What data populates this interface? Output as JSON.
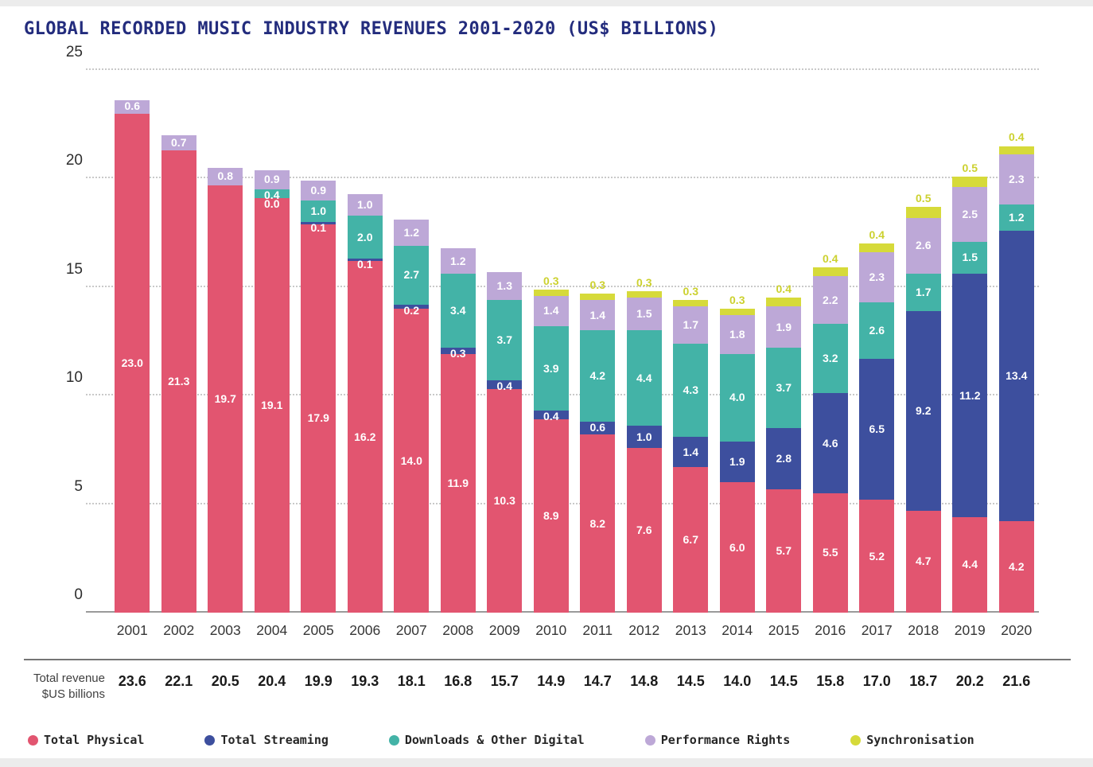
{
  "title": "GLOBAL RECORDED MUSIC INDUSTRY REVENUES 2001-2020 (US$ BILLIONS)",
  "colors": {
    "physical": "#e25570",
    "streaming": "#3d4f9e",
    "downloads": "#43b3a7",
    "performance": "#bda8d7",
    "sync": "#d6da3a",
    "sync_label_text": "#ccd12f",
    "title_text": "#232c7d",
    "axis_text": "#2d2d2d",
    "gridline": "#c9c9c9"
  },
  "chart_data": {
    "type": "bar",
    "stacked": true,
    "title": "GLOBAL RECORDED MUSIC INDUSTRY REVENUES 2001-2020 (US$ BILLIONS)",
    "ylabel": "US$ billions",
    "xlabel": "",
    "ylim": [
      0,
      25
    ],
    "yticks": [
      0,
      5,
      10,
      15,
      20,
      25
    ],
    "grid": "horizontal-dotted",
    "legend_position": "bottom",
    "categories": [
      "2001",
      "2002",
      "2003",
      "2004",
      "2005",
      "2006",
      "2007",
      "2008",
      "2009",
      "2010",
      "2011",
      "2012",
      "2013",
      "2014",
      "2015",
      "2016",
      "2017",
      "2018",
      "2019",
      "2020"
    ],
    "series": [
      {
        "name": "Total Physical",
        "key": "physical",
        "values": [
          23.0,
          21.3,
          19.7,
          19.1,
          17.9,
          16.2,
          14.0,
          11.9,
          10.3,
          8.9,
          8.2,
          7.6,
          6.7,
          6.0,
          5.7,
          5.5,
          5.2,
          4.7,
          4.4,
          4.2
        ]
      },
      {
        "name": "Total Streaming",
        "key": "streaming",
        "values": [
          null,
          null,
          null,
          0.0,
          0.1,
          0.1,
          0.2,
          0.3,
          0.4,
          0.4,
          0.6,
          1.0,
          1.4,
          1.9,
          2.8,
          4.6,
          6.5,
          9.2,
          11.2,
          13.4
        ]
      },
      {
        "name": "Downloads & Other Digital",
        "key": "downloads",
        "values": [
          null,
          null,
          null,
          0.4,
          1.0,
          2.0,
          2.7,
          3.4,
          3.7,
          3.9,
          4.2,
          4.4,
          4.3,
          4.0,
          3.7,
          3.2,
          2.6,
          1.7,
          1.5,
          1.2
        ]
      },
      {
        "name": "Performance Rights",
        "key": "performance",
        "values": [
          0.6,
          0.7,
          0.8,
          0.9,
          0.9,
          1.0,
          1.2,
          1.2,
          1.3,
          1.4,
          1.4,
          1.5,
          1.7,
          1.8,
          1.9,
          2.2,
          2.3,
          2.6,
          2.5,
          2.3
        ]
      },
      {
        "name": "Synchronisation",
        "key": "sync",
        "values": [
          null,
          null,
          null,
          null,
          null,
          null,
          null,
          null,
          null,
          0.3,
          0.3,
          0.3,
          0.3,
          0.3,
          0.4,
          0.4,
          0.4,
          0.5,
          0.5,
          0.4
        ]
      }
    ]
  },
  "totals_row": {
    "label_line1": "Total revenue",
    "label_line2": "$US billions",
    "values": [
      "23.6",
      "22.1",
      "20.5",
      "20.4",
      "19.9",
      "19.3",
      "18.1",
      "16.8",
      "15.7",
      "14.9",
      "14.7",
      "14.8",
      "14.5",
      "14.0",
      "14.5",
      "15.8",
      "17.0",
      "18.7",
      "20.2",
      "21.6"
    ]
  },
  "legend": [
    {
      "label": "Total Physical",
      "color_key": "physical"
    },
    {
      "label": "Total Streaming",
      "color_key": "streaming"
    },
    {
      "label": "Downloads & Other Digital",
      "color_key": "downloads"
    },
    {
      "label": "Performance Rights",
      "color_key": "performance"
    },
    {
      "label": "Synchronisation",
      "color_key": "sync"
    }
  ]
}
